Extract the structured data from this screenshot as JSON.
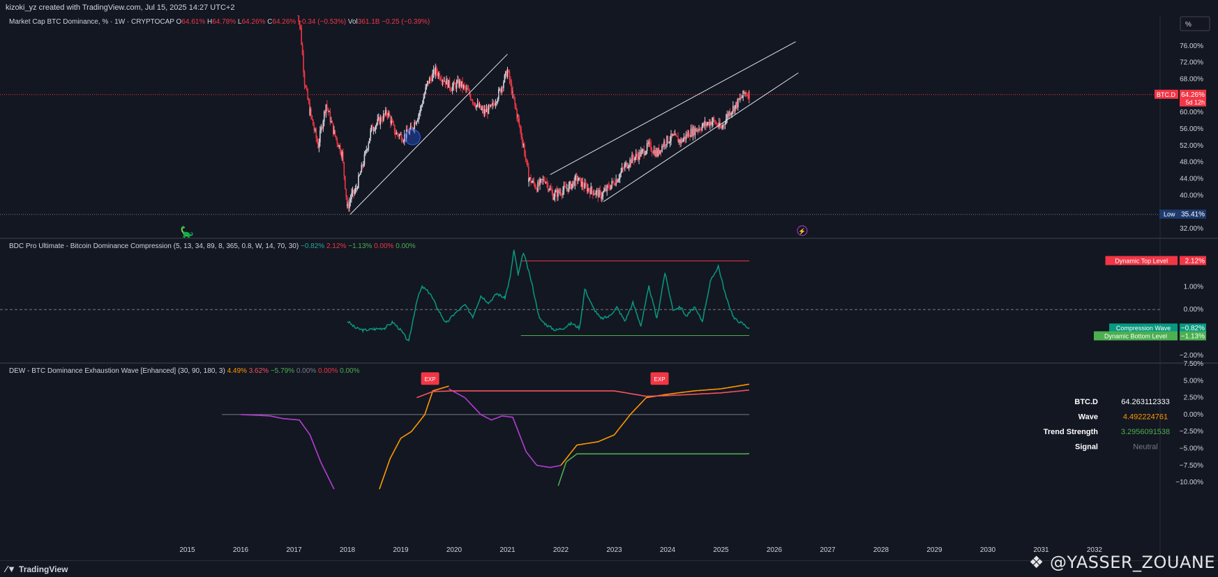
{
  "header": {
    "created_by": "kizoki_yz created with TradingView.com, Jul 15, 2025 14:27 UTC+2"
  },
  "footer": {
    "brand": "TradingView",
    "watermark": "@YASSER_ZOUANE"
  },
  "panes": {
    "main": {
      "legend_parts": [
        {
          "text": "Market Cap BTC Dominance, % · 1W · CRYPTOCAP",
          "color": "#d1d4dc"
        },
        {
          "text": " O",
          "color": "#d1d4dc"
        },
        {
          "text": "64.61%",
          "color": "#f23645"
        },
        {
          "text": " H",
          "color": "#d1d4dc"
        },
        {
          "text": "64.78%",
          "color": "#f23645"
        },
        {
          "text": " L",
          "color": "#d1d4dc"
        },
        {
          "text": "64.26%",
          "color": "#f23645"
        },
        {
          "text": " C",
          "color": "#d1d4dc"
        },
        {
          "text": "64.26%",
          "color": "#f23645"
        },
        {
          "text": " −0.34 (−0.53%)",
          "color": "#f23645"
        },
        {
          "text": " Vol",
          "color": "#d1d4dc"
        },
        {
          "text": "361.1B",
          "color": "#f23645"
        },
        {
          "text": " −0.25 (−0.39%)",
          "color": "#f23645"
        }
      ],
      "y_ticks": [
        "76.00%",
        "72.00%",
        "68.00%",
        "60.00%",
        "56.00%",
        "52.00%",
        "48.00%",
        "44.00%",
        "40.00%",
        "32.00%"
      ],
      "scale_button": "%",
      "price_label": {
        "name": "BTC.D",
        "value": "64.26%",
        "countdown": "5d 12h"
      },
      "low_label": {
        "name": "Low",
        "value": "35.41%"
      }
    },
    "bdc": {
      "legend_title": "BDC Pro Ultimate - Bitcoin Dominance Compression (5, 13, 34, 89, 8, 365, 0.8, W, 14, 70, 30)",
      "legend_values": [
        {
          "text": "−0.82%",
          "color": "#26a69a"
        },
        {
          "text": "2.12%",
          "color": "#f23645"
        },
        {
          "text": "−1.13%",
          "color": "#4caf50"
        },
        {
          "text": "0.00%",
          "color": "#f23645"
        },
        {
          "text": "0.00%",
          "color": "#4caf50"
        }
      ],
      "y_ticks": [
        "1.00%",
        "0.00%",
        "−2.00%"
      ],
      "labels": [
        {
          "name": "Dynamic Top Level",
          "value": "2.12%",
          "color": "#f23645"
        },
        {
          "name": "Compression Wave",
          "value": "−0.82%",
          "color": "#089981"
        },
        {
          "name": "Dynamic Bottom Level",
          "value": "−1.13%",
          "color": "#4caf50"
        }
      ]
    },
    "dew": {
      "legend_title": "DEW - BTC Dominance Exhaustion Wave [Enhanced] (30, 90, 180, 3)",
      "legend_values": [
        {
          "text": "4.49%",
          "color": "#ff9800"
        },
        {
          "text": "3.62%",
          "color": "#f7525f"
        },
        {
          "text": "−5.79%",
          "color": "#4caf50"
        },
        {
          "text": "0.00%",
          "color": "#787b86"
        },
        {
          "text": "0.00%",
          "color": "#f23645"
        },
        {
          "text": "0.00%",
          "color": "#4caf50"
        }
      ],
      "y_ticks": [
        "7.50%",
        "5.00%",
        "2.50%",
        "0.00%",
        "−2.50%",
        "−5.00%",
        "−7.50%",
        "−10.00%"
      ],
      "table": [
        {
          "label": "BTC.D",
          "value": "64.263112333",
          "color": "#ffffff"
        },
        {
          "label": "Wave",
          "value": "4.492224761",
          "color": "#ff9800"
        },
        {
          "label": "Trend Strength",
          "value": "3.2956091538",
          "color": "#4caf50"
        },
        {
          "label": "Signal",
          "value": "Neutral",
          "color": "#787b86"
        }
      ],
      "markers": [
        "EXP",
        "EXP"
      ]
    }
  },
  "time_axis": [
    "2015",
    "2016",
    "2017",
    "2018",
    "2019",
    "2020",
    "2021",
    "2022",
    "2023",
    "2024",
    "2025",
    "2026",
    "2027",
    "2028",
    "2029",
    "2030",
    "2031",
    "2032"
  ],
  "colors": {
    "bg": "#131722",
    "bull": "#d1d4dc",
    "bear": "#f23645",
    "wave": "#089981",
    "orange": "#ff9800",
    "purple": "#b33fd1",
    "pink": "#f7525f",
    "green": "#4caf50"
  },
  "chart_data": [
    {
      "type": "candlestick",
      "title": "Market Cap BTC Dominance, % · 1W · CRYPTOCAP",
      "x": [
        2017.05,
        2017.12,
        2017.2,
        2017.3,
        2017.45,
        2017.6,
        2017.75,
        2017.9,
        2018.0,
        2018.08,
        2018.15,
        2018.3,
        2018.45,
        2018.6,
        2018.75,
        2018.9,
        2019.05,
        2019.2,
        2019.35,
        2019.5,
        2019.65,
        2019.8,
        2019.95,
        2020.1,
        2020.25,
        2020.4,
        2020.55,
        2020.7,
        2020.85,
        2021.0,
        2021.1,
        2021.2,
        2021.3,
        2021.4,
        2021.55,
        2021.7,
        2021.85,
        2022.0,
        2022.15,
        2022.3,
        2022.45,
        2022.6,
        2022.75,
        2022.9,
        2023.05,
        2023.2,
        2023.35,
        2023.5,
        2023.65,
        2023.8,
        2023.95,
        2024.1,
        2024.25,
        2024.4,
        2024.55,
        2024.7,
        2024.85,
        2025.0,
        2025.15,
        2025.3,
        2025.45,
        2025.53
      ],
      "close": [
        86,
        80,
        67,
        60,
        52,
        62,
        55,
        50,
        37,
        40,
        41,
        48,
        56,
        58,
        60,
        55,
        54,
        56,
        60,
        67,
        70,
        68,
        66,
        67,
        65,
        62,
        60,
        61,
        65,
        70,
        64,
        58,
        52,
        44,
        42,
        44,
        40,
        41,
        42,
        44,
        42,
        41,
        40,
        42,
        44,
        47,
        49,
        50,
        52,
        50,
        53,
        54,
        53,
        55,
        56,
        57,
        58,
        56,
        60,
        62,
        64.8,
        64.26
      ],
      "ylim": [
        30,
        82
      ],
      "low": {
        "value": 35.41
      }
    },
    {
      "type": "line",
      "title": "BDC Pro Ultimate - Bitcoin Dominance Compression",
      "x": [
        2018.0,
        2018.15,
        2018.3,
        2018.5,
        2018.7,
        2018.85,
        2019.0,
        2019.15,
        2019.3,
        2019.4,
        2019.55,
        2019.7,
        2019.85,
        2020.0,
        2020.2,
        2020.35,
        2020.5,
        2020.65,
        2020.8,
        2020.95,
        2021.05,
        2021.12,
        2021.2,
        2021.3,
        2021.45,
        2021.6,
        2021.75,
        2021.9,
        2022.05,
        2022.2,
        2022.35,
        2022.45,
        2022.6,
        2022.75,
        2022.9,
        2023.05,
        2023.2,
        2023.35,
        2023.5,
        2023.65,
        2023.8,
        2023.95,
        2024.1,
        2024.25,
        2024.35,
        2024.5,
        2024.65,
        2024.8,
        2024.95,
        2025.1,
        2025.25,
        2025.4,
        2025.53
      ],
      "y": [
        -0.5,
        -0.8,
        -0.9,
        -0.85,
        -0.8,
        -0.55,
        -0.9,
        -1.4,
        0.4,
        1.0,
        0.7,
        0.0,
        -0.6,
        -0.2,
        0.2,
        -0.3,
        0.6,
        0.3,
        0.7,
        0.5,
        1.4,
        2.6,
        1.5,
        2.5,
        1.2,
        -0.4,
        -0.7,
        -0.9,
        -0.8,
        -0.6,
        -0.8,
        0.9,
        0.1,
        -0.4,
        -0.3,
        0.1,
        -0.5,
        0.3,
        -0.7,
        1.0,
        -0.4,
        1.6,
        0.0,
        0.1,
        -0.3,
        0.1,
        -0.5,
        1.2,
        1.9,
        0.5,
        -0.4,
        -0.6,
        -0.82
      ],
      "top_level": 2.12,
      "bottom_level": -1.13,
      "ylim": [
        -2.3,
        2.8
      ]
    },
    {
      "type": "line",
      "title": "DEW - BTC Dominance Exhaustion Wave [Enhanced]",
      "series": [
        {
          "color": "#b33fd1",
          "x": [
            2016.0,
            2016.3,
            2016.55,
            2016.8,
            2017.1,
            2017.3,
            2017.5,
            2017.75
          ],
          "y": [
            0.0,
            -0.1,
            -0.2,
            -0.6,
            -0.8,
            -3.0,
            -7.0,
            -11.0
          ]
        },
        {
          "color": "#ff9800",
          "x": [
            2018.6,
            2018.8,
            2019.0,
            2019.2,
            2019.45,
            2019.6,
            2019.9
          ],
          "y": [
            -11.0,
            -6.5,
            -3.5,
            -2.5,
            0.0,
            3.5,
            4.2
          ]
        },
        {
          "color": "#b33fd1",
          "x": [
            2019.9,
            2020.2,
            2020.5,
            2020.7,
            2020.9,
            2021.1,
            2021.35,
            2021.55,
            2021.8,
            2022.0
          ],
          "y": [
            3.8,
            2.5,
            0.0,
            -0.8,
            -0.2,
            -0.4,
            -5.5,
            -7.5,
            -7.8,
            -7.5
          ]
        },
        {
          "color": "#ff9800",
          "x": [
            2022.0,
            2022.3,
            2022.7,
            2023.0,
            2023.3,
            2023.6,
            2024.0,
            2024.5,
            2025.0,
            2025.53
          ],
          "y": [
            -7.5,
            -4.5,
            -4.0,
            -3.0,
            0.0,
            2.5,
            3.0,
            3.5,
            3.8,
            4.49
          ]
        },
        {
          "color": "#f7525f",
          "x": [
            2019.3,
            2019.6,
            2020.0,
            2023.0,
            2023.6,
            2024.0,
            2025.0,
            2025.53
          ],
          "y": [
            2.5,
            3.4,
            3.5,
            3.5,
            2.7,
            2.8,
            3.2,
            3.62
          ]
        },
        {
          "color": "#4caf50",
          "x": [
            2021.95,
            2022.1,
            2022.3,
            2025.4,
            2025.53
          ],
          "y": [
            -10.5,
            -7.0,
            -5.8,
            -5.8,
            -5.79
          ]
        }
      ],
      "zero_line": 0.0,
      "ylim": [
        -10.5,
        7.5
      ]
    }
  ]
}
